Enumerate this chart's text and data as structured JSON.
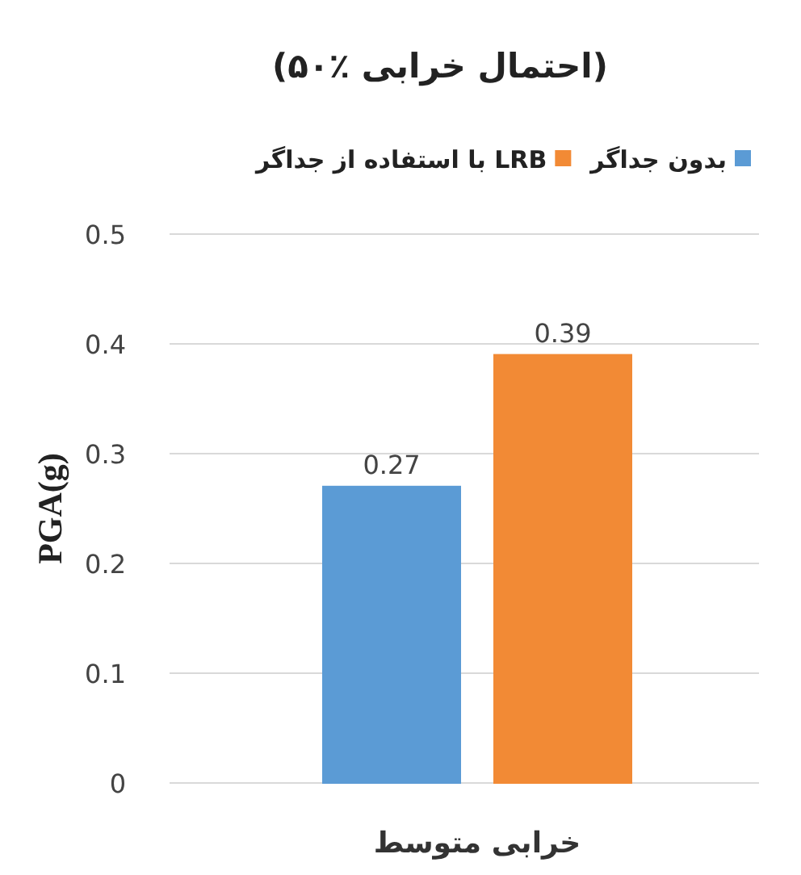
{
  "chart_data": {
    "type": "bar",
    "title": "(۵۰٪ احتمال خرابی)",
    "ylabel": "PGA(g)",
    "categories": [
      "خرابی متوسط"
    ],
    "series": [
      {
        "name": "بدون جداگر",
        "color": "#5b9bd5",
        "values": [
          0.27
        ]
      },
      {
        "name": "با استفاده از جداگر LRB",
        "color": "#f28a35",
        "values": [
          0.39
        ]
      }
    ],
    "ylim": [
      0,
      0.5
    ],
    "yticks": [
      0,
      0.1,
      0.2,
      0.3,
      0.4,
      0.5
    ],
    "grid": "y",
    "legend": "top",
    "data_labels": true
  }
}
